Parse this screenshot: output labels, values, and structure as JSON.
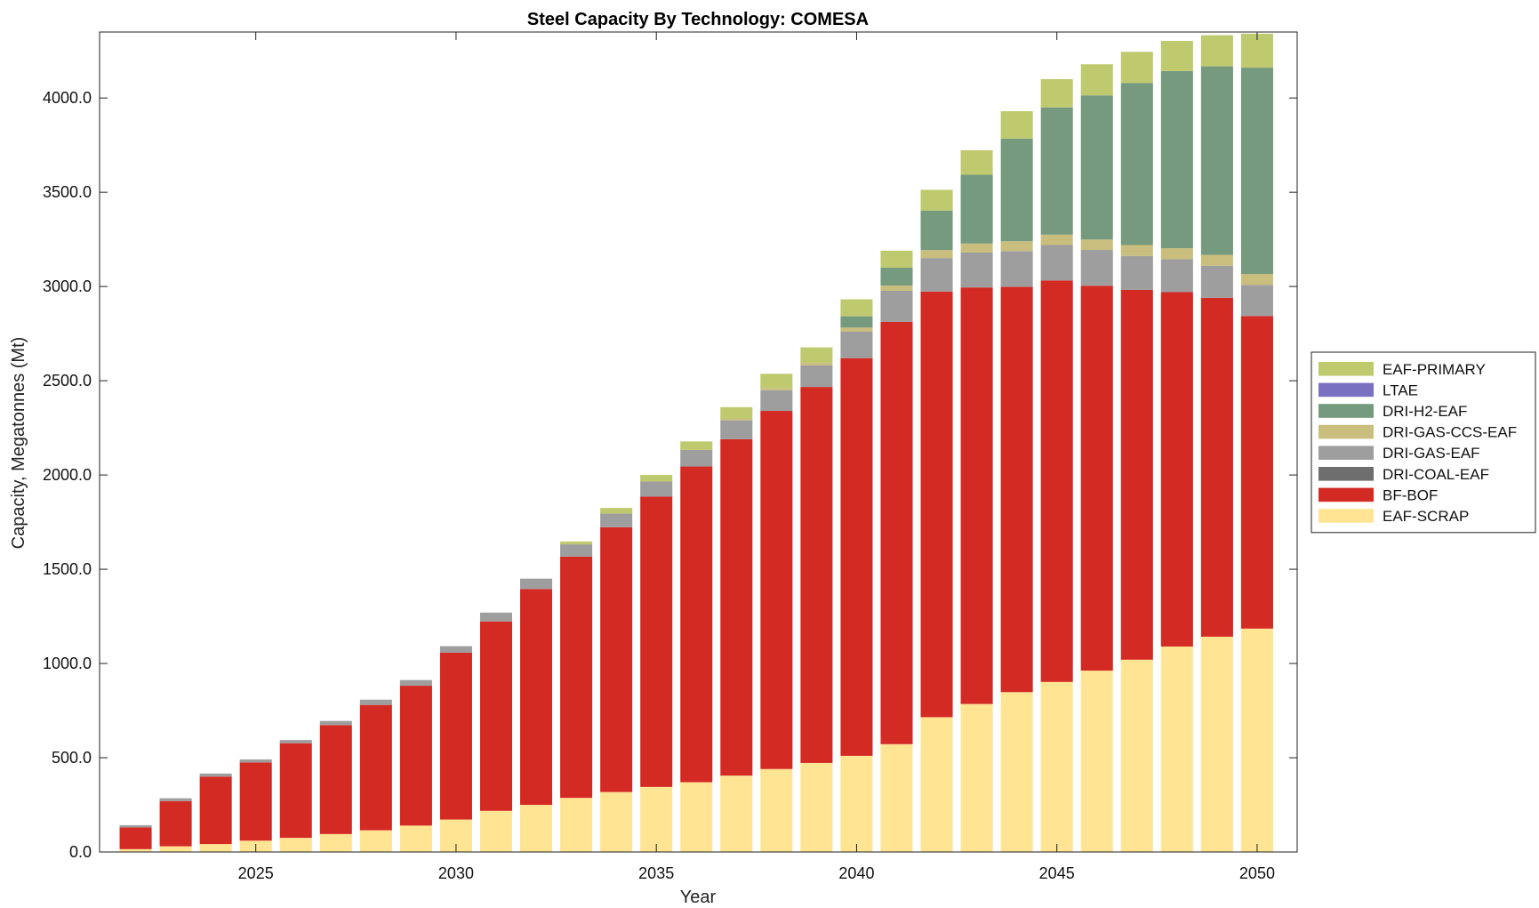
{
  "chart_data": {
    "type": "bar",
    "stacked": true,
    "title": "Steel Capacity By Technology: COMESA",
    "xlabel": "Year",
    "ylabel": "Capacity, Megatonnes (Mt)",
    "ylim": [
      0,
      4350
    ],
    "xlim": [
      2021.1,
      2051.0
    ],
    "x_ticks": [
      2025,
      2030,
      2035,
      2040,
      2045,
      2050
    ],
    "y_ticks": [
      0,
      500,
      1000,
      1500,
      2000,
      2500,
      3000,
      3500,
      4000
    ],
    "y_tick_labels": [
      "0.0",
      "500.0",
      "1000.0",
      "1500.0",
      "2000.0",
      "2500.0",
      "3000.0",
      "3500.0",
      "4000.0"
    ],
    "grid": false,
    "legend_position": "outside-right",
    "x": [
      2022,
      2023,
      2024,
      2025,
      2026,
      2027,
      2028,
      2029,
      2030,
      2031,
      2032,
      2033,
      2034,
      2035,
      2036,
      2037,
      2038,
      2039,
      2040,
      2041,
      2042,
      2043,
      2044,
      2045,
      2046,
      2047,
      2048,
      2049,
      2050
    ],
    "series": [
      {
        "name": "EAF-SCRAP",
        "color": "#FFE494",
        "values": [
          15,
          30,
          42,
          60,
          75,
          95,
          115,
          140,
          172,
          218,
          250,
          287,
          318,
          345,
          370,
          405,
          440,
          472,
          510,
          572,
          715,
          785,
          848,
          902,
          962,
          1020,
          1090,
          1142,
          1185
        ]
      },
      {
        "name": "BF-BOF",
        "color": "#D42A24",
        "values": [
          115,
          240,
          358,
          415,
          502,
          578,
          665,
          742,
          885,
          1005,
          1145,
          1280,
          1405,
          1540,
          1675,
          1785,
          1900,
          1995,
          2110,
          2240,
          2258,
          2210,
          2150,
          2130,
          2042,
          1962,
          1880,
          1798,
          1658
        ]
      },
      {
        "name": "DRI-COAL-EAF",
        "color": "#6E6E6E",
        "values": [
          0,
          0,
          0,
          0,
          0,
          0,
          0,
          0,
          0,
          0,
          0,
          0,
          0,
          0,
          0,
          0,
          0,
          0,
          0,
          0,
          0,
          0,
          0,
          0,
          0,
          0,
          0,
          0,
          0
        ]
      },
      {
        "name": "DRI-GAS-EAF",
        "color": "#9E9E9E",
        "values": [
          12,
          15,
          16,
          16,
          17,
          22,
          28,
          30,
          35,
          47,
          55,
          65,
          72,
          80,
          88,
          100,
          110,
          115,
          140,
          165,
          178,
          185,
          190,
          188,
          190,
          180,
          175,
          170,
          165
        ]
      },
      {
        "name": "DRI-GAS-CCS-EAF",
        "color": "#C9BE7D",
        "values": [
          0,
          0,
          0,
          0,
          0,
          0,
          0,
          0,
          0,
          0,
          0,
          0,
          0,
          0,
          0,
          10,
          12,
          15,
          22,
          28,
          42,
          48,
          52,
          55,
          55,
          58,
          58,
          58,
          58
        ]
      },
      {
        "name": "DRI-H2-EAF",
        "color": "#759A7D",
        "values": [
          0,
          0,
          0,
          0,
          0,
          0,
          0,
          0,
          0,
          0,
          0,
          0,
          0,
          0,
          0,
          0,
          0,
          0,
          60,
          95,
          210,
          365,
          545,
          675,
          765,
          860,
          940,
          1000,
          1095
        ]
      },
      {
        "name": "LTAE",
        "color": "#7A70C2",
        "values": [
          0,
          0,
          0,
          0,
          0,
          0,
          0,
          0,
          0,
          0,
          0,
          0,
          0,
          0,
          0,
          0,
          0,
          0,
          0,
          0,
          0,
          0,
          0,
          0,
          0,
          0,
          0,
          0,
          0
        ]
      },
      {
        "name": "EAF-PRIMARY",
        "color": "#BFC96E",
        "values": [
          0,
          0,
          0,
          0,
          0,
          0,
          0,
          0,
          0,
          0,
          0,
          15,
          30,
          35,
          45,
          60,
          75,
          80,
          90,
          90,
          110,
          130,
          145,
          150,
          165,
          165,
          160,
          165,
          180
        ]
      }
    ],
    "legend_order": [
      "EAF-PRIMARY",
      "LTAE",
      "DRI-H2-EAF",
      "DRI-GAS-CCS-EAF",
      "DRI-GAS-EAF",
      "DRI-COAL-EAF",
      "BF-BOF",
      "EAF-SCRAP"
    ]
  }
}
